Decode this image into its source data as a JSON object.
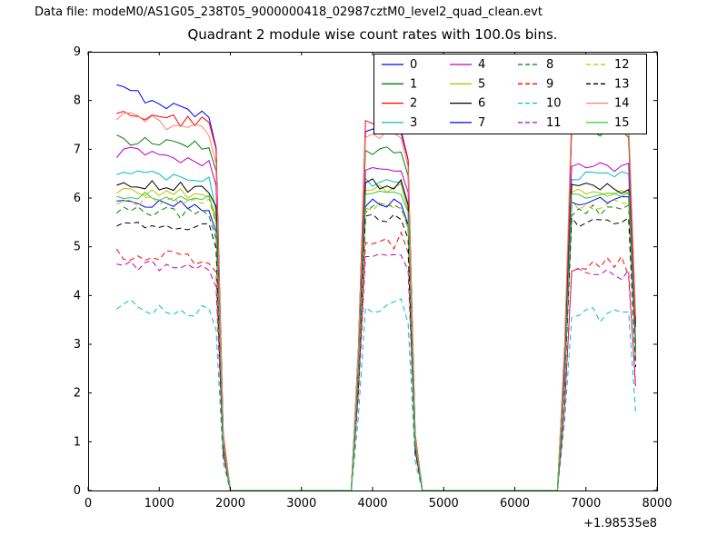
{
  "header": {
    "datafile_label": "Data file: modeM0/AS1G05_238T05_9000000418_02987cztM0_level2_quad_clean.evt"
  },
  "chart_data": {
    "type": "line",
    "title": "Quadrant 2 module wise count rates with 100.0s bins.",
    "xlabel": "",
    "ylabel": "",
    "x_offset_text": "+1.98535e8",
    "xlim": [
      0,
      8000
    ],
    "ylim": [
      0,
      9
    ],
    "x_ticks": [
      0,
      1000,
      2000,
      3000,
      4000,
      5000,
      6000,
      7000,
      8000
    ],
    "y_ticks": [
      0,
      1,
      2,
      3,
      4,
      5,
      6,
      7,
      8,
      9
    ],
    "grid": false,
    "bin_seconds": 100,
    "data_start": 400,
    "data_end": 7790,
    "bursts": [
      {
        "start": 400,
        "end": 1920,
        "ramp_left": false
      },
      {
        "start": 3750,
        "end": 4620,
        "ramp_left": true
      },
      {
        "start": 6650,
        "end": 7760,
        "ramp_left": true
      }
    ],
    "gap_value": 0,
    "legend": {
      "position": "upper center-right",
      "columns": 4,
      "order": "column-major"
    },
    "series": [
      {
        "name": "0",
        "color": "#0000ff",
        "dash": false,
        "levels": [
          7.9,
          7.45,
          7.5
        ],
        "trend": 0.35,
        "noise": 0.12
      },
      {
        "name": "1",
        "color": "#008000",
        "dash": false,
        "levels": [
          7.1,
          7.0,
          7.35
        ],
        "trend": 0.1,
        "noise": 0.12
      },
      {
        "name": "2",
        "color": "#ff0000",
        "dash": false,
        "levels": [
          7.6,
          7.45,
          7.6
        ],
        "trend": 0.15,
        "noise": 0.15
      },
      {
        "name": "3",
        "color": "#00bfbf",
        "dash": false,
        "levels": [
          6.4,
          6.35,
          6.45
        ],
        "trend": 0.1,
        "noise": 0.12
      },
      {
        "name": "4",
        "color": "#bf00bf",
        "dash": false,
        "levels": [
          6.8,
          6.55,
          6.6
        ],
        "trend": 0.15,
        "noise": 0.13
      },
      {
        "name": "5",
        "color": "#bfbf00",
        "dash": false,
        "levels": [
          6.1,
          6.2,
          6.1
        ],
        "trend": 0.05,
        "noise": 0.1
      },
      {
        "name": "6",
        "color": "#000000",
        "dash": false,
        "levels": [
          6.25,
          6.3,
          6.2
        ],
        "trend": 0.05,
        "noise": 0.12
      },
      {
        "name": "7",
        "color": "#0000ff",
        "dash": false,
        "levels": [
          5.85,
          5.9,
          5.95
        ],
        "trend": 0.05,
        "noise": 0.1
      },
      {
        "name": "8",
        "color": "#008000",
        "dash": true,
        "levels": [
          5.7,
          5.8,
          5.75
        ],
        "trend": 0.05,
        "noise": 0.12
      },
      {
        "name": "9",
        "color": "#ff0000",
        "dash": true,
        "levels": [
          4.85,
          5.15,
          4.6
        ],
        "trend": 0.1,
        "noise": 0.2
      },
      {
        "name": "10",
        "color": "#00bfbf",
        "dash": true,
        "levels": [
          3.7,
          3.8,
          3.6
        ],
        "trend": 0.1,
        "noise": 0.15
      },
      {
        "name": "11",
        "color": "#bf00bf",
        "dash": true,
        "levels": [
          4.6,
          4.9,
          4.45
        ],
        "trend": 0.05,
        "noise": 0.12
      },
      {
        "name": "12",
        "color": "#bfbf00",
        "dash": true,
        "levels": [
          5.9,
          5.8,
          5.85
        ],
        "trend": 0.05,
        "noise": 0.12
      },
      {
        "name": "13",
        "color": "#000000",
        "dash": true,
        "levels": [
          5.45,
          5.6,
          5.5
        ],
        "trend": 0.05,
        "noise": 0.1
      },
      {
        "name": "14",
        "color": "#fa8072",
        "dash": false,
        "levels": [
          7.5,
          7.3,
          7.7
        ],
        "trend": 0.2,
        "noise": 0.12
      },
      {
        "name": "15",
        "color": "#32cd32",
        "dash": false,
        "levels": [
          6.0,
          6.1,
          6.05
        ],
        "trend": 0.05,
        "noise": 0.1
      }
    ]
  }
}
